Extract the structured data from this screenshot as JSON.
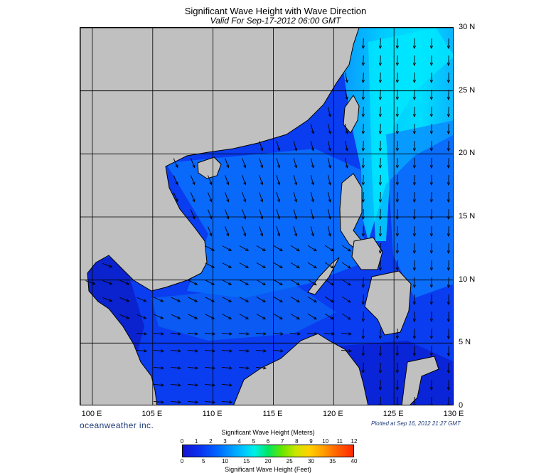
{
  "title": "Significant Wave Height with Wave Direction",
  "subtitle": "Valid For Sep-17-2012 06:00 GMT",
  "brand": "oceanweather inc.",
  "plotted": "Plotted at Sep 16, 2012 21:27 GMT",
  "map": {
    "lon_range": [
      99,
      130
    ],
    "lat_range": [
      0,
      30
    ],
    "lon_labels": [
      "100 E",
      "105 E",
      "110 E",
      "115 E",
      "120 E",
      "125 E",
      "130 E"
    ],
    "lon_values": [
      100,
      105,
      110,
      115,
      120,
      125,
      130
    ],
    "lat_labels": [
      "30 N",
      "25 N",
      "20 N",
      "15 N",
      "10 N",
      "5 N",
      "0"
    ],
    "lat_values": [
      30,
      25,
      20,
      15,
      10,
      5,
      0
    ],
    "land_color": "#c0c0c0",
    "sea_base_color": "#0a3cf0",
    "arrow_color": "#000000"
  },
  "legend": {
    "meters_title": "Significant Wave Height (Meters)",
    "feet_title": "Significant Wave Height (Feet)",
    "meters_ticks": [
      "0",
      "1",
      "2",
      "3",
      "4",
      "5",
      "6",
      "7",
      "8",
      "9",
      "10",
      "11",
      "12"
    ],
    "feet_ticks": [
      "0",
      "5",
      "10",
      "15",
      "20",
      "25",
      "30",
      "35",
      "40"
    ]
  }
}
